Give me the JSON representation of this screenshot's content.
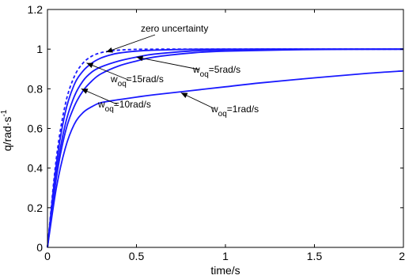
{
  "chart_data": {
    "type": "line",
    "xlabel": "time/s",
    "ylabel": "q/rad·s",
    "ylabel_sup": "-1",
    "xlim": [
      0,
      2
    ],
    "ylim": [
      0,
      1.2
    ],
    "xticks": [
      "0",
      "0.5",
      "1",
      "1.5",
      "2"
    ],
    "yticks": [
      "0",
      "0.2",
      "0.4",
      "0.6",
      "0.8",
      "1",
      "1.2"
    ],
    "grid": false,
    "legend": "none",
    "colors": {
      "series": "#1a1aff",
      "axis": "#000000"
    },
    "series": [
      {
        "name": "zero uncertainty",
        "style": "dashed",
        "x": [
          0,
          0.05,
          0.1,
          0.15,
          0.2,
          0.25,
          0.3,
          0.35,
          0.4,
          0.5,
          0.7,
          1.0,
          1.5,
          2.0
        ],
        "y": [
          0,
          0.45,
          0.72,
          0.86,
          0.93,
          0.965,
          0.982,
          0.99,
          0.995,
          0.999,
          1.0,
          1.0,
          1.0,
          1.0
        ]
      },
      {
        "name": "w_oq=15rad/s",
        "style": "solid",
        "x": [
          0,
          0.05,
          0.1,
          0.15,
          0.2,
          0.25,
          0.3,
          0.35,
          0.4,
          0.5,
          0.6,
          0.8,
          1.0,
          1.5,
          2.0
        ],
        "y": [
          0,
          0.42,
          0.68,
          0.82,
          0.89,
          0.93,
          0.955,
          0.97,
          0.98,
          0.99,
          0.995,
          0.999,
          1.0,
          1.0,
          1.0
        ]
      },
      {
        "name": "w_oq=5rad/s",
        "style": "solid",
        "x": [
          0,
          0.05,
          0.1,
          0.15,
          0.2,
          0.25,
          0.3,
          0.4,
          0.5,
          0.6,
          0.8,
          1.0,
          1.2,
          1.5,
          2.0
        ],
        "y": [
          0,
          0.38,
          0.62,
          0.76,
          0.84,
          0.885,
          0.91,
          0.94,
          0.96,
          0.975,
          0.99,
          0.997,
          1.0,
          1.0,
          1.0
        ]
      },
      {
        "name": "w_oq=10rad/s",
        "style": "solid",
        "x": [
          0,
          0.05,
          0.1,
          0.15,
          0.2,
          0.25,
          0.3,
          0.4,
          0.5,
          0.6,
          0.8,
          1.0,
          1.5,
          2.0
        ],
        "y": [
          0,
          0.35,
          0.58,
          0.71,
          0.79,
          0.84,
          0.875,
          0.915,
          0.94,
          0.96,
          0.98,
          0.99,
          0.998,
          1.0
        ]
      },
      {
        "name": "w_oq=1rad/s",
        "style": "solid",
        "x": [
          0,
          0.05,
          0.1,
          0.15,
          0.2,
          0.25,
          0.3,
          0.4,
          0.5,
          0.6,
          0.8,
          1.0,
          1.2,
          1.5,
          1.8,
          2.0
        ],
        "y": [
          0,
          0.3,
          0.5,
          0.62,
          0.68,
          0.71,
          0.73,
          0.745,
          0.758,
          0.77,
          0.79,
          0.81,
          0.83,
          0.855,
          0.878,
          0.89
        ]
      }
    ],
    "annotations": [
      {
        "id": "zero",
        "text": "zero uncertainty",
        "arrow_to": [
          0.33,
          0.985
        ]
      },
      {
        "id": "w15",
        "main": "w",
        "sub": "oq",
        "rest": "=15rad/s",
        "arrow_to": [
          0.22,
          0.93
        ]
      },
      {
        "id": "w5",
        "main": "w",
        "sub": "oq",
        "rest": "=5rad/s",
        "arrow_to": [
          0.5,
          0.96
        ]
      },
      {
        "id": "w10",
        "main": "w",
        "sub": "oq",
        "rest": "=10rad/s",
        "arrow_to": [
          0.19,
          0.8
        ]
      },
      {
        "id": "w1",
        "main": "w",
        "sub": "oq",
        "rest": "=1rad/s",
        "arrow_to": [
          0.75,
          0.78
        ]
      }
    ]
  }
}
